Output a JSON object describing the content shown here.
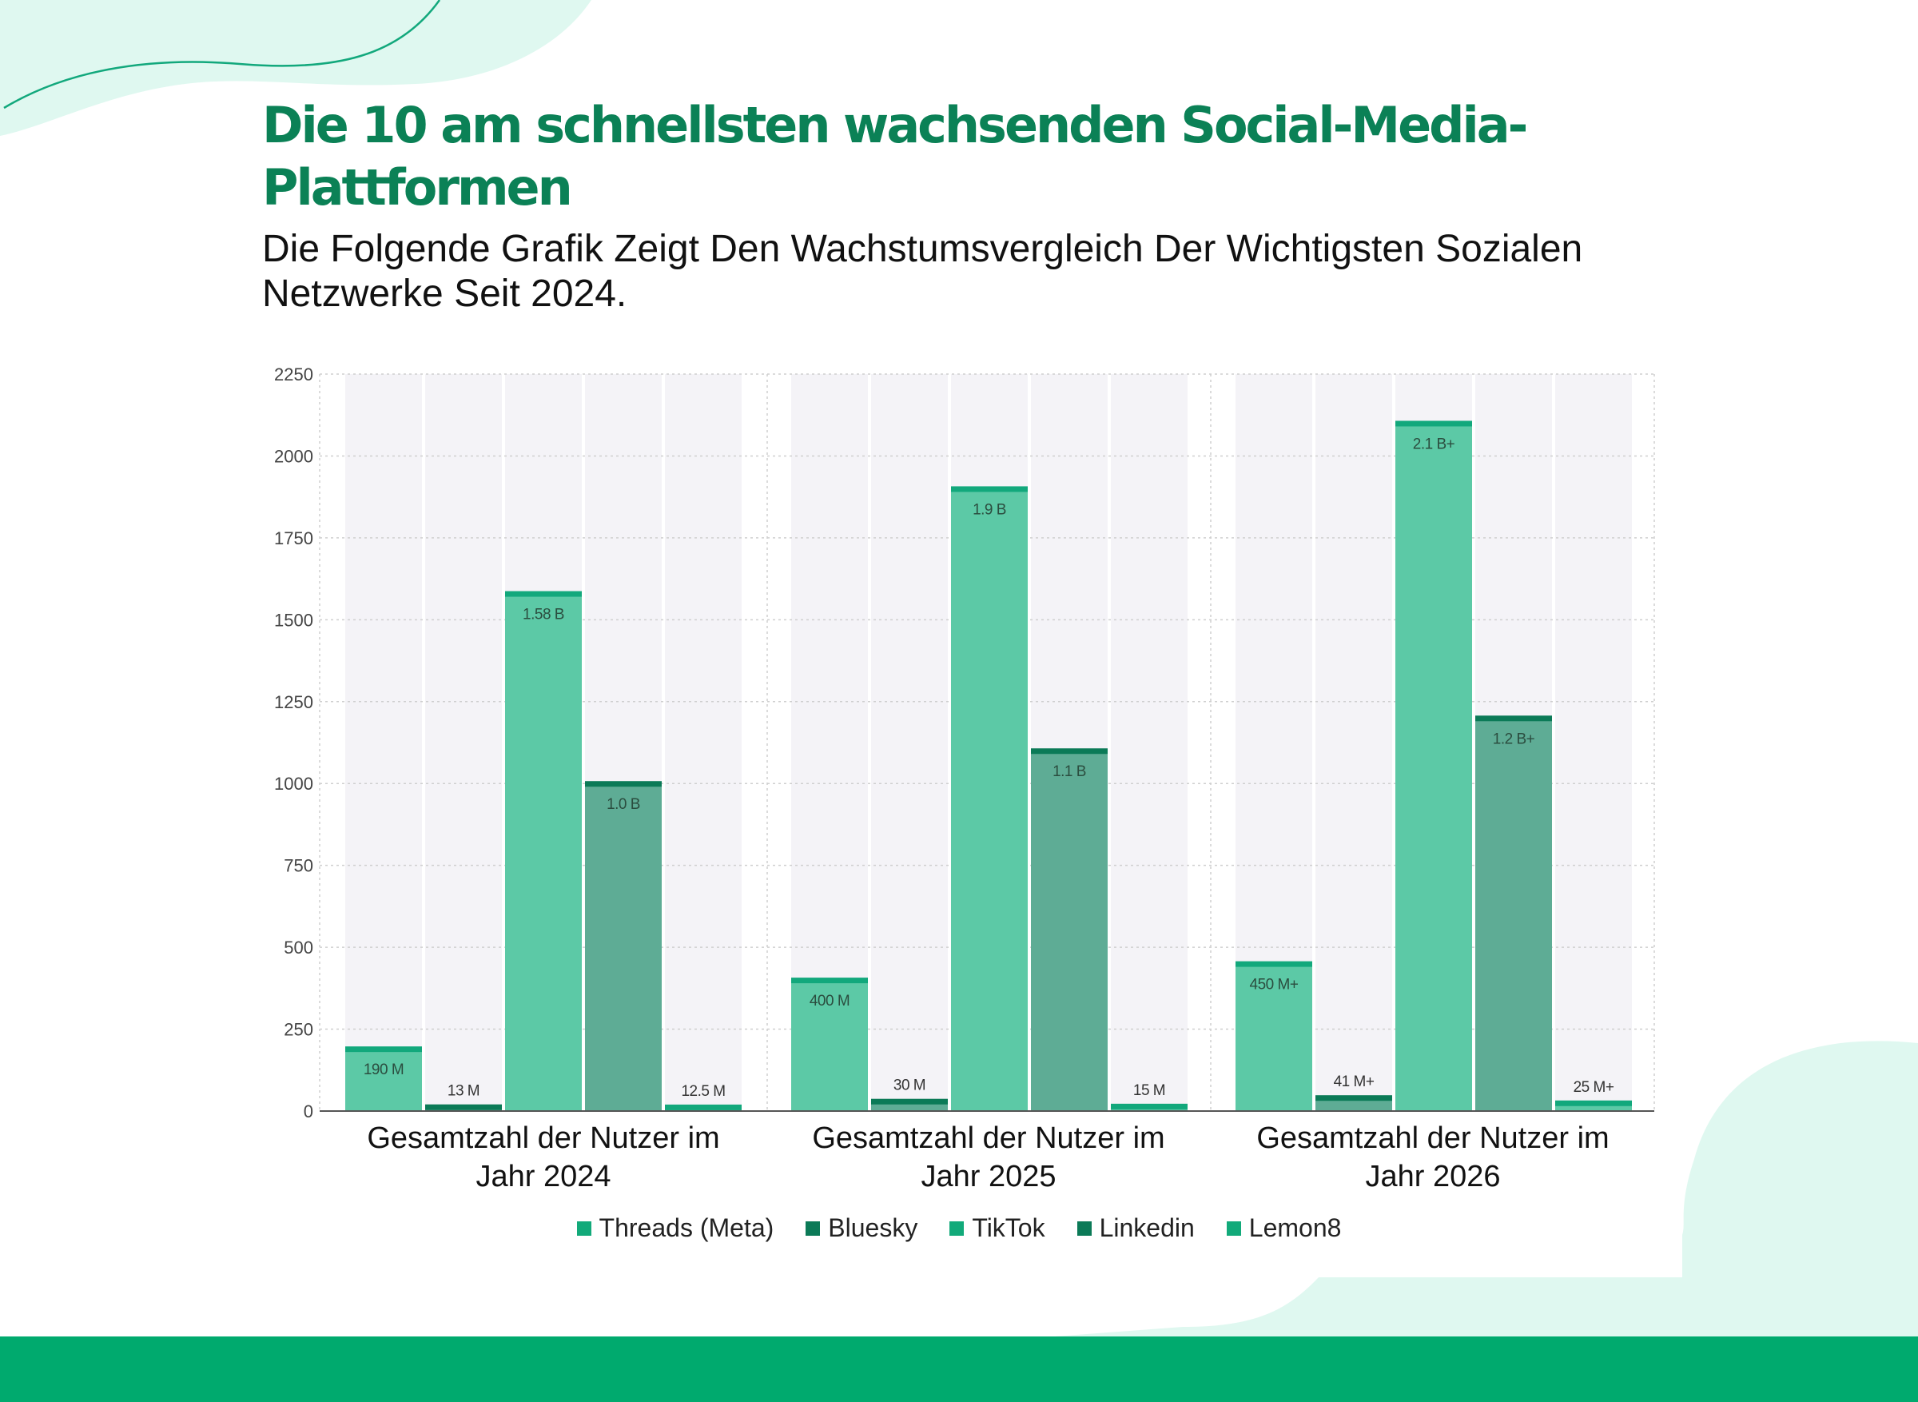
{
  "header": {
    "title": "Die 10 am schnellsten wachsenden Social-Media-Plattformen",
    "subtitle": "Die Folgende Grafik Zeigt Den Wachstumsvergleich Der Wichtigsten Sozialen Netzwerke Seit 2024."
  },
  "colors": {
    "title": "#0b8156",
    "light_bar": "#5cc9a6",
    "dark_bar": "#5eac95",
    "light_cap": "#12a87c",
    "dark_cap": "#0b7a57",
    "column_bg": "#f4f3f7",
    "decor": "#dff8f0",
    "footer": "#00aa6e",
    "legend_light": "#12aa7a",
    "legend_dark": "#0b7a57"
  },
  "chart_data": {
    "type": "bar",
    "categories": [
      "Gesamtzahl der Nutzer im Jahr 2024",
      "Gesamtzahl der Nutzer im Jahr 2025",
      "Gesamtzahl der Nutzer im Jahr 2026"
    ],
    "category_lines": [
      [
        "Gesamtzahl der Nutzer im",
        "Jahr 2024"
      ],
      [
        "Gesamtzahl der Nutzer im",
        "Jahr 2025"
      ],
      [
        "Gesamtzahl der Nutzer im",
        "Jahr 2026"
      ]
    ],
    "ylim": [
      0,
      2250
    ],
    "yticks": [
      0,
      250,
      500,
      750,
      1000,
      1250,
      1500,
      1750,
      2000,
      2250
    ],
    "grid": true,
    "legend_position": "bottom",
    "series": [
      {
        "name": "Threads (Meta)",
        "tone": "light",
        "values": [
          190,
          400,
          450
        ],
        "labels": [
          "190 M",
          "400 M",
          "450 M+"
        ]
      },
      {
        "name": "Bluesky",
        "tone": "dark",
        "values": [
          13,
          30,
          41
        ],
        "labels": [
          "13 M",
          "30 M",
          "41 M+"
        ]
      },
      {
        "name": "TikTok",
        "tone": "light",
        "values": [
          1580,
          1900,
          2100
        ],
        "labels": [
          "1.58 B",
          "1.9 B",
          "2.1 B+"
        ]
      },
      {
        "name": "Linkedin",
        "tone": "dark",
        "values": [
          1000,
          1100,
          1200
        ],
        "labels": [
          "1.0 B",
          "1.1 B",
          "1.2 B+"
        ]
      },
      {
        "name": "Lemon8",
        "tone": "light",
        "values": [
          12.5,
          15,
          25
        ],
        "labels": [
          "12.5 M",
          "15 M",
          "25 M+"
        ]
      }
    ]
  }
}
